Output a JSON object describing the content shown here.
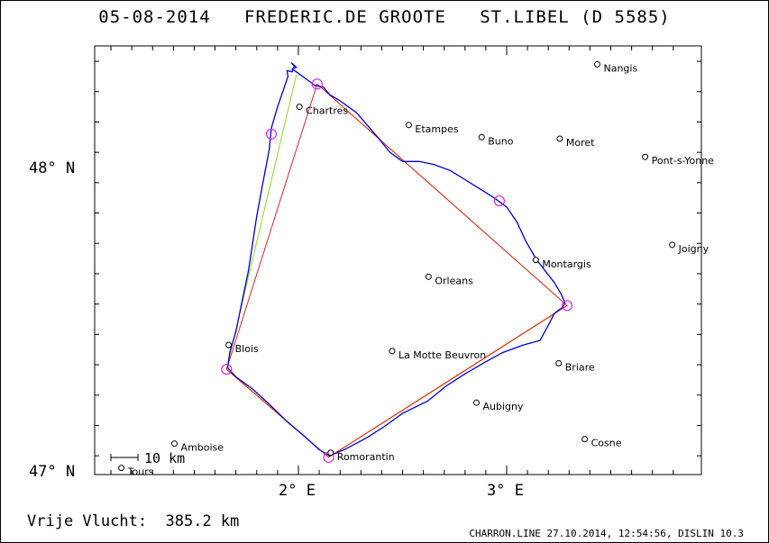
{
  "header": {
    "date": "05-08-2014",
    "pilot": "FREDERIC.DE GROOTE",
    "club": "ST.LIBEL (D 5585)"
  },
  "axes": {
    "lat_labels": [
      {
        "value": 48,
        "text": "48° N"
      },
      {
        "value": 47,
        "text": "47° N"
      }
    ],
    "lon_labels": [
      {
        "value": 2,
        "text": "2° E"
      },
      {
        "value": 3,
        "text": "3° E"
      }
    ]
  },
  "scale_bar": {
    "label": "10 km"
  },
  "cities": [
    {
      "name": "Nangis",
      "lon": 3.435,
      "lat": 48.34
    },
    {
      "name": "Chartres",
      "lon": 2.005,
      "lat": 48.2
    },
    {
      "name": "Etampes",
      "lon": 2.53,
      "lat": 48.14
    },
    {
      "name": "Buno",
      "lon": 2.88,
      "lat": 48.1
    },
    {
      "name": "Moret",
      "lon": 3.255,
      "lat": 48.095
    },
    {
      "name": "Pont-s-Yonne",
      "lon": 3.665,
      "lat": 48.035
    },
    {
      "name": "Joigny",
      "lon": 3.795,
      "lat": 47.745
    },
    {
      "name": "Montargis",
      "lon": 3.14,
      "lat": 47.695
    },
    {
      "name": "Orleans",
      "lon": 2.625,
      "lat": 47.64
    },
    {
      "name": "Blois",
      "lon": 1.665,
      "lat": 47.415
    },
    {
      "name": "La Motte Beuvron",
      "lon": 2.45,
      "lat": 47.395
    },
    {
      "name": "Briare",
      "lon": 3.25,
      "lat": 47.355
    },
    {
      "name": "Aubigny",
      "lon": 2.855,
      "lat": 47.225
    },
    {
      "name": "Cosne",
      "lon": 3.375,
      "lat": 47.105
    },
    {
      "name": "Amboise",
      "lon": 1.405,
      "lat": 47.09
    },
    {
      "name": "Tours",
      "lon": 1.15,
      "lat": 47.01
    },
    {
      "name": "Romorantin",
      "lon": 2.155,
      "lat": 47.06
    }
  ],
  "turnpoints": [
    {
      "lon": 2.09,
      "lat": 48.275
    },
    {
      "lon": 1.87,
      "lat": 48.11
    },
    {
      "lon": 1.655,
      "lat": 47.335
    },
    {
      "lon": 2.145,
      "lat": 47.045
    },
    {
      "lon": 3.29,
      "lat": 47.545
    },
    {
      "lon": 2.965,
      "lat": 47.89
    }
  ],
  "task_red": [
    {
      "lon": 2.09,
      "lat": 48.275
    },
    {
      "lon": 1.655,
      "lat": 47.335
    },
    {
      "lon": 2.145,
      "lat": 47.045
    },
    {
      "lon": 3.29,
      "lat": 47.545
    },
    {
      "lon": 2.09,
      "lat": 48.275
    }
  ],
  "task_green": [
    {
      "lon": 1.99,
      "lat": 48.305
    },
    {
      "lon": 1.655,
      "lat": 47.335
    },
    {
      "lon": 2.145,
      "lat": 47.045
    },
    {
      "lon": 3.29,
      "lat": 47.545
    },
    {
      "lon": 2.09,
      "lat": 48.275
    }
  ],
  "task_orange": [
    {
      "lon": 1.655,
      "lat": 47.335
    },
    {
      "lon": 2.145,
      "lat": 47.045
    },
    {
      "lon": 3.29,
      "lat": 47.545
    }
  ],
  "track": [
    {
      "lon": 1.945,
      "lat": 48.32
    },
    {
      "lon": 1.97,
      "lat": 48.315
    },
    {
      "lon": 1.98,
      "lat": 48.335
    },
    {
      "lon": 1.965,
      "lat": 48.345
    },
    {
      "lon": 1.975,
      "lat": 48.34
    },
    {
      "lon": 1.99,
      "lat": 48.33
    },
    {
      "lon": 1.97,
      "lat": 48.325
    },
    {
      "lon": 1.99,
      "lat": 48.315
    },
    {
      "lon": 2.06,
      "lat": 48.28
    },
    {
      "lon": 2.08,
      "lat": 48.27
    },
    {
      "lon": 2.12,
      "lat": 48.265
    },
    {
      "lon": 2.15,
      "lat": 48.24
    },
    {
      "lon": 2.2,
      "lat": 48.22
    },
    {
      "lon": 2.28,
      "lat": 48.18
    },
    {
      "lon": 2.33,
      "lat": 48.14
    },
    {
      "lon": 2.38,
      "lat": 48.1
    },
    {
      "lon": 2.44,
      "lat": 48.05
    },
    {
      "lon": 2.5,
      "lat": 48.02
    },
    {
      "lon": 2.58,
      "lat": 48.02
    },
    {
      "lon": 2.65,
      "lat": 48.01
    },
    {
      "lon": 2.73,
      "lat": 47.99
    },
    {
      "lon": 2.8,
      "lat": 47.96
    },
    {
      "lon": 2.87,
      "lat": 47.93
    },
    {
      "lon": 2.94,
      "lat": 47.9
    },
    {
      "lon": 3.0,
      "lat": 47.87
    },
    {
      "lon": 3.05,
      "lat": 47.82
    },
    {
      "lon": 3.09,
      "lat": 47.76
    },
    {
      "lon": 3.14,
      "lat": 47.7
    },
    {
      "lon": 3.19,
      "lat": 47.655
    },
    {
      "lon": 3.23,
      "lat": 47.62
    },
    {
      "lon": 3.26,
      "lat": 47.585
    },
    {
      "lon": 3.28,
      "lat": 47.555
    },
    {
      "lon": 3.27,
      "lat": 47.54
    },
    {
      "lon": 3.23,
      "lat": 47.52
    },
    {
      "lon": 3.2,
      "lat": 47.48
    },
    {
      "lon": 3.16,
      "lat": 47.43
    },
    {
      "lon": 3.08,
      "lat": 47.415
    },
    {
      "lon": 2.98,
      "lat": 47.39
    },
    {
      "lon": 2.9,
      "lat": 47.36
    },
    {
      "lon": 2.8,
      "lat": 47.32
    },
    {
      "lon": 2.71,
      "lat": 47.28
    },
    {
      "lon": 2.62,
      "lat": 47.23
    },
    {
      "lon": 2.5,
      "lat": 47.19
    },
    {
      "lon": 2.42,
      "lat": 47.15
    },
    {
      "lon": 2.33,
      "lat": 47.11
    },
    {
      "lon": 2.22,
      "lat": 47.07
    },
    {
      "lon": 2.15,
      "lat": 47.05
    },
    {
      "lon": 2.1,
      "lat": 47.07
    },
    {
      "lon": 2.02,
      "lat": 47.12
    },
    {
      "lon": 1.95,
      "lat": 47.16
    },
    {
      "lon": 1.86,
      "lat": 47.22
    },
    {
      "lon": 1.78,
      "lat": 47.27
    },
    {
      "lon": 1.7,
      "lat": 47.31
    },
    {
      "lon": 1.66,
      "lat": 47.34
    },
    {
      "lon": 1.67,
      "lat": 47.39
    },
    {
      "lon": 1.7,
      "lat": 47.46
    },
    {
      "lon": 1.73,
      "lat": 47.56
    },
    {
      "lon": 1.76,
      "lat": 47.66
    },
    {
      "lon": 1.78,
      "lat": 47.75
    },
    {
      "lon": 1.8,
      "lat": 47.84
    },
    {
      "lon": 1.83,
      "lat": 47.95
    },
    {
      "lon": 1.86,
      "lat": 48.06
    },
    {
      "lon": 1.87,
      "lat": 48.13
    },
    {
      "lon": 1.9,
      "lat": 48.2
    },
    {
      "lon": 1.93,
      "lat": 48.26
    },
    {
      "lon": 1.95,
      "lat": 48.3
    },
    {
      "lon": 1.945,
      "lat": 48.32
    }
  ],
  "footer": {
    "distance": "Vrije Vlucht:  385.2 km",
    "credit": "CHARRON.LINE 27.10.2014, 12:54:56, DISLIN 10.3"
  },
  "colors": {
    "track": "#0000cc",
    "task_red": "#dd2222",
    "task_green": "#88dd22",
    "task_orange": "#e0a000",
    "turnpoint": "#dd22dd",
    "frame": "#000000"
  }
}
